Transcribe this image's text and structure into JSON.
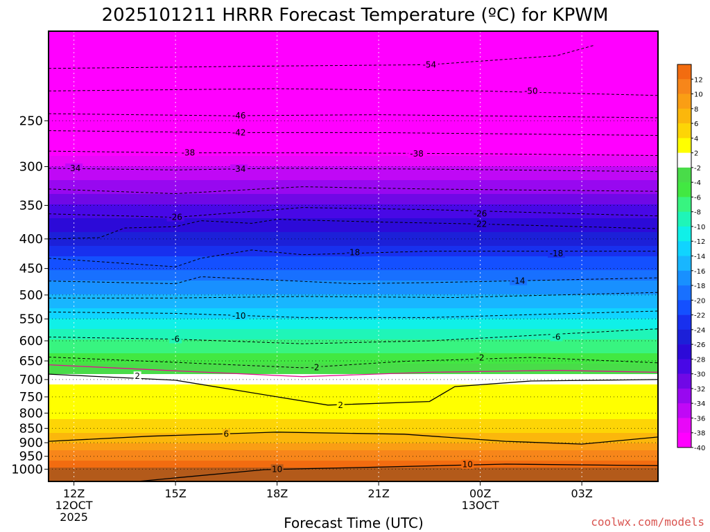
{
  "chart_data": {
    "type": "heatmap",
    "title": "2025101211 HRRR Forecast Temperature (ºC) for KPWM",
    "xlabel": "Forecast Time (UTC)",
    "credit": "coolwx.com/models",
    "y_axis": {
      "type": "log-pressure",
      "ylim": [
        1050,
        175
      ],
      "ticks": [
        250,
        300,
        350,
        400,
        450,
        500,
        550,
        600,
        650,
        700,
        750,
        800,
        850,
        900,
        950,
        1000
      ]
    },
    "x_axis": {
      "xlim": [
        -1,
        23
      ],
      "ticks": [
        {
          "hour": 0,
          "lines": [
            "12Z",
            "12OCT",
            "2025"
          ]
        },
        {
          "hour": 4,
          "lines": [
            "15Z"
          ]
        },
        {
          "hour": 8,
          "lines": [
            "18Z"
          ]
        },
        {
          "hour": 12,
          "lines": [
            "21Z"
          ]
        },
        {
          "hour": 16,
          "lines": [
            "00Z",
            "13OCT"
          ]
        },
        {
          "hour": 20,
          "lines": [
            "03Z"
          ]
        }
      ]
    },
    "colorbar": {
      "levels": [
        14,
        12,
        10,
        8,
        6,
        4,
        2,
        0,
        -2,
        -4,
        -6,
        -8,
        -10,
        -12,
        -14,
        -16,
        -18,
        -20,
        -22,
        -24,
        -26,
        -28,
        -30,
        -32,
        -34,
        -36,
        -38,
        -40,
        -42
      ],
      "labels": [
        "12",
        "10",
        "8",
        "6",
        "4",
        "2",
        "-2",
        "-4",
        "-6",
        "-8",
        "-10",
        "-12",
        "-14",
        "-16",
        "-18",
        "-20",
        "-22",
        "-24",
        "-26",
        "-28",
        "-30",
        "-32",
        "-34",
        "-36",
        "-38",
        "-40"
      ],
      "colors": [
        "#f26c10",
        "#f7861a",
        "#fa9e14",
        "#fbb70c",
        "#fdd506",
        "#ffff00",
        "#ffffff",
        "#49dc49",
        "#42e842",
        "#38f480",
        "#1ff5b8",
        "#10f0e8",
        "#10d4ff",
        "#18b6ff",
        "#1890ff",
        "#1870ff",
        "#1450ff",
        "#1830ee",
        "#1c20d8",
        "#2c0ad8",
        "#4808e6",
        "#7008e6",
        "#9808f0",
        "#c008f6",
        "#e808f8",
        "#ff00ff"
      ]
    },
    "profiles": [
      {
        "p": 1000,
        "t": 15
      },
      {
        "p": 950,
        "t": 11
      },
      {
        "p": 900,
        "t": 8
      },
      {
        "p": 850,
        "t": 5
      },
      {
        "p": 800,
        "t": 3.5
      },
      {
        "p": 750,
        "t": 3
      },
      {
        "p": 700,
        "t": 1.5
      },
      {
        "p": 650,
        "t": -3
      },
      {
        "p": 600,
        "t": -6
      },
      {
        "p": 550,
        "t": -10
      },
      {
        "p": 500,
        "t": -14
      },
      {
        "p": 450,
        "t": -18
      },
      {
        "p": 400,
        "t": -23
      },
      {
        "p": 350,
        "t": -28
      },
      {
        "p": 300,
        "t": -34
      },
      {
        "p": 250,
        "t": -44
      },
      {
        "p": 200,
        "t": -54
      }
    ],
    "contours": [
      {
        "label": "-54",
        "style": "dashed",
        "points": [
          [
            -1,
            203
          ],
          [
            8,
            201
          ],
          [
            14,
            200
          ],
          [
            19,
            193
          ],
          [
            20.5,
            185
          ]
        ],
        "label_at": [
          14,
          200
        ]
      },
      {
        "label": "-50",
        "style": "dashed",
        "points": [
          [
            -1,
            222
          ],
          [
            8,
            220
          ],
          [
            16,
            222
          ],
          [
            23,
            226
          ]
        ],
        "label_at": [
          18,
          222
        ]
      },
      {
        "label": "-46",
        "style": "dashed",
        "points": [
          [
            -1,
            243
          ],
          [
            6,
            245
          ],
          [
            12,
            244
          ],
          [
            23,
            247
          ]
        ],
        "label_at": [
          6.5,
          245
        ]
      },
      {
        "label": "-42",
        "style": "dashed",
        "points": [
          [
            -1,
            260
          ],
          [
            6,
            262
          ],
          [
            12,
            262
          ],
          [
            23,
            265
          ]
        ],
        "label_at": [
          6.5,
          262
        ]
      },
      {
        "label": "-38",
        "style": "dashed",
        "points": [
          [
            -1,
            282
          ],
          [
            4,
            284
          ],
          [
            10,
            284
          ],
          [
            16,
            285
          ],
          [
            23,
            287
          ]
        ],
        "label_at": [
          4.5,
          284
        ]
      },
      {
        "label": "-38",
        "style": "dashed",
        "points": [],
        "label_at": [
          13.5,
          285
        ]
      },
      {
        "label": "-34",
        "style": "dashed",
        "points": [
          [
            -1,
            302
          ],
          [
            4,
            304
          ],
          [
            8,
            302
          ],
          [
            14,
            303
          ],
          [
            23,
            306
          ]
        ],
        "label_at": [
          0,
          302
        ]
      },
      {
        "label": "-34",
        "style": "dashed",
        "points": [],
        "label_at": [
          6.5,
          303
        ]
      },
      {
        "label": "",
        "style": "dashed",
        "points": [
          [
            -1,
            328
          ],
          [
            4,
            334
          ],
          [
            9,
            325
          ],
          [
            14,
            328
          ],
          [
            23,
            331
          ]
        ],
        "label_at": null
      },
      {
        "label": "-26",
        "style": "dashed",
        "points": [
          [
            -1,
            362
          ],
          [
            4,
            367
          ],
          [
            9,
            353
          ],
          [
            14,
            356
          ],
          [
            23,
            365
          ]
        ],
        "label_at": [
          4,
          367
        ]
      },
      {
        "label": "-26",
        "style": "dashed",
        "points": [],
        "label_at": [
          16,
          362
        ]
      },
      {
        "label": "-22",
        "style": "dashed",
        "points": [
          [
            -1,
            400
          ],
          [
            1,
            398
          ],
          [
            2,
            383
          ],
          [
            4,
            381
          ],
          [
            5,
            372
          ],
          [
            7,
            376
          ],
          [
            8,
            370
          ],
          [
            12,
            374
          ],
          [
            16,
            377
          ],
          [
            23,
            384
          ]
        ],
        "label_at": [
          16,
          377
        ]
      },
      {
        "label": "-18",
        "style": "dashed",
        "points": [
          [
            -1,
            432
          ],
          [
            4,
            447
          ],
          [
            5,
            432
          ],
          [
            7,
            418
          ],
          [
            9,
            426
          ],
          [
            14,
            420
          ],
          [
            23,
            420
          ]
        ],
        "label_at": [
          11,
          422
        ]
      },
      {
        "label": "-18",
        "style": "dashed",
        "points": [],
        "label_at": [
          19,
          424
        ]
      },
      {
        "label": "-14",
        "style": "dashed",
        "points": [
          [
            -1,
            473
          ],
          [
            4,
            478
          ],
          [
            5,
            465
          ],
          [
            11,
            478
          ],
          [
            14,
            476
          ],
          [
            23,
            467
          ]
        ],
        "label_at": [
          17.5,
          473
        ]
      },
      {
        "label": "",
        "style": "dashed",
        "points": [
          [
            -1,
            506
          ],
          [
            4,
            506
          ],
          [
            9,
            503
          ],
          [
            15,
            505
          ],
          [
            23,
            495
          ]
        ],
        "label_at": null
      },
      {
        "label": "-10",
        "style": "dashed",
        "points": [
          [
            -1,
            535
          ],
          [
            4,
            538
          ],
          [
            9,
            547
          ],
          [
            14,
            547
          ],
          [
            23,
            533
          ]
        ],
        "label_at": [
          6.5,
          543
        ]
      },
      {
        "label": "-6",
        "style": "dashed",
        "points": [
          [
            -1,
            591
          ],
          [
            4,
            596
          ],
          [
            9,
            607
          ],
          [
            14,
            600
          ],
          [
            23,
            572
          ]
        ],
        "label_at": [
          4,
          596
        ]
      },
      {
        "label": "-6",
        "style": "dashed",
        "points": [],
        "label_at": [
          19,
          591
        ]
      },
      {
        "label": "-2",
        "style": "dashed",
        "points": [
          [
            -1,
            640
          ],
          [
            9,
            668
          ],
          [
            13,
            651
          ],
          [
            18,
            641
          ],
          [
            23,
            655
          ]
        ],
        "label_at": [
          9.5,
          667
        ]
      },
      {
        "label": "-2",
        "style": "dashed",
        "points": [],
        "label_at": [
          16,
          642
        ]
      },
      {
        "label": "2",
        "style": "solid",
        "points": [
          [
            -1,
            685
          ],
          [
            4,
            702
          ],
          [
            8,
            750
          ],
          [
            10,
            775
          ],
          [
            14,
            764
          ],
          [
            15,
            720
          ],
          [
            18,
            704
          ],
          [
            23,
            700
          ]
        ],
        "label_at": [
          2.5,
          691
        ]
      },
      {
        "label": "2",
        "style": "solid",
        "points": [],
        "label_at": [
          10.5,
          775
        ]
      },
      {
        "label": "6",
        "style": "solid",
        "points": [
          [
            -1,
            895
          ],
          [
            3,
            877
          ],
          [
            8,
            863
          ],
          [
            13,
            870
          ],
          [
            17,
            895
          ],
          [
            20,
            905
          ],
          [
            23,
            880
          ]
        ],
        "label_at": [
          6,
          869
        ]
      },
      {
        "label": "10",
        "style": "solid",
        "points": [
          [
            2.5,
            1050
          ],
          [
            7.5,
            1002
          ],
          [
            11,
            994
          ],
          [
            17,
            980
          ],
          [
            23,
            986
          ]
        ],
        "label_at": [
          8,
          1000
        ]
      },
      {
        "label": "10",
        "style": "solid",
        "points": [],
        "label_at": [
          15.5,
          982
        ]
      }
    ]
  }
}
